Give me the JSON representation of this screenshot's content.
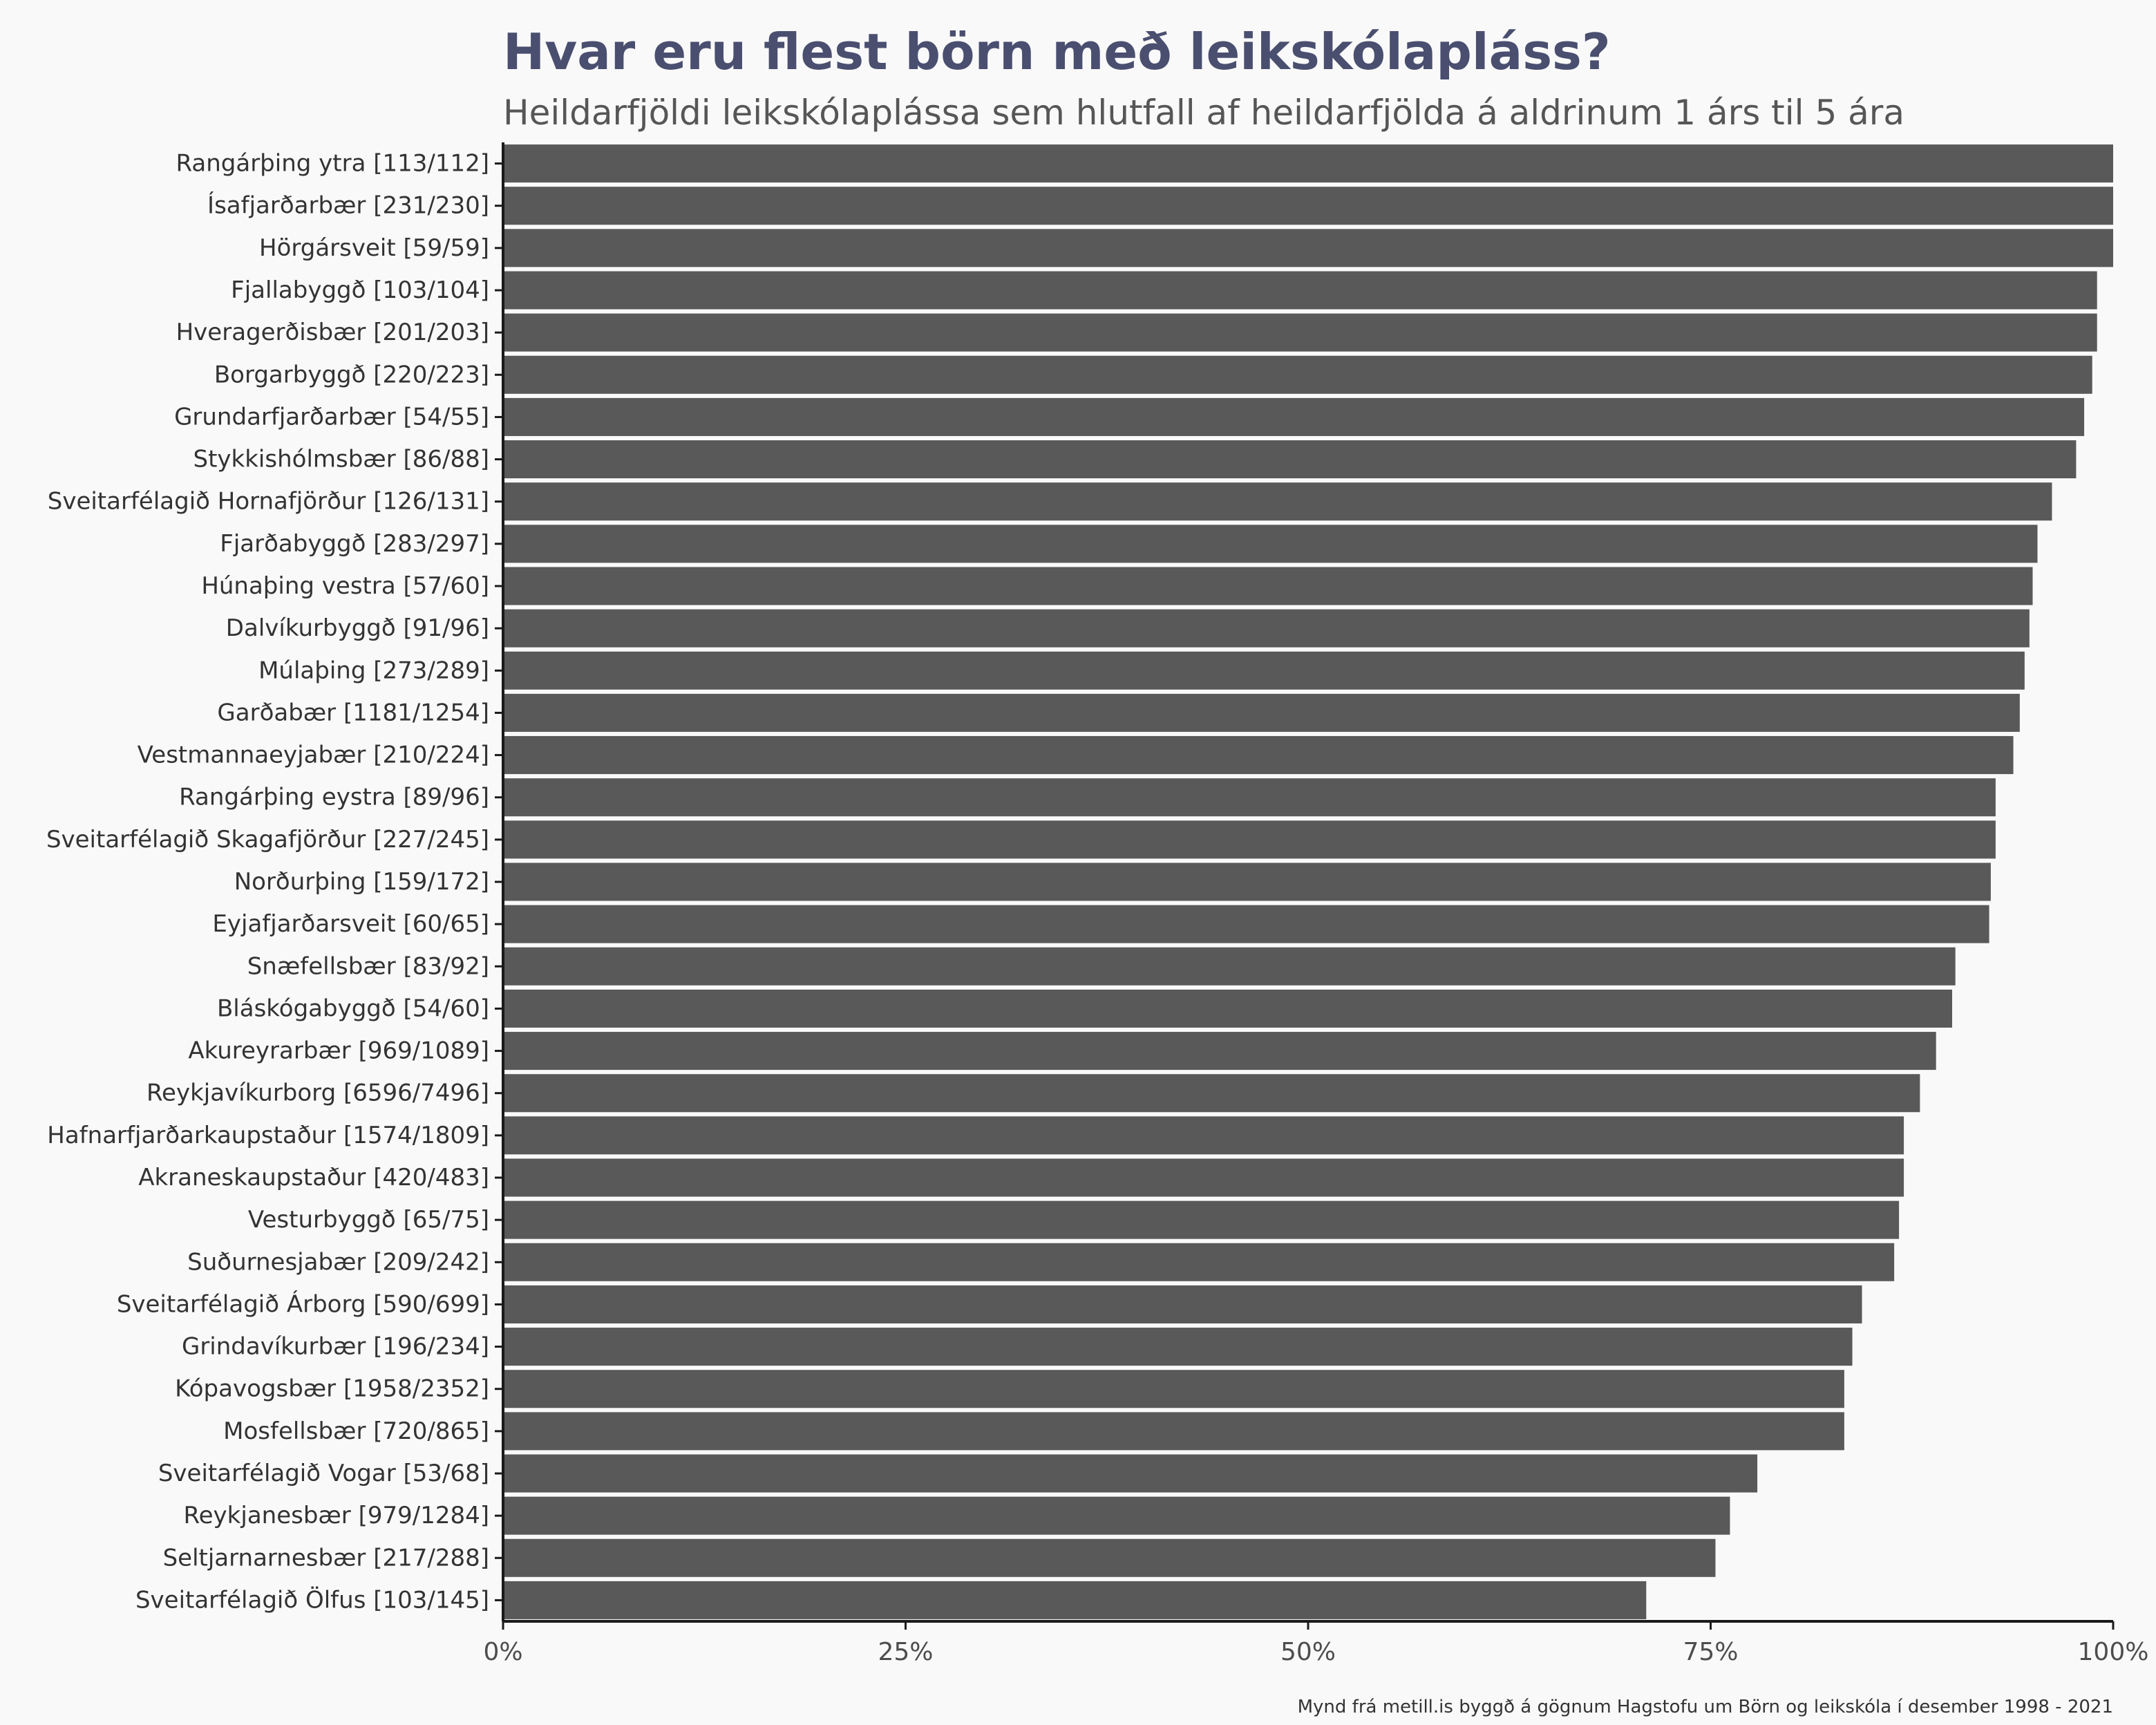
{
  "chart_data": {
    "type": "bar",
    "orientation": "horizontal",
    "title": "Hvar eru flest börn með leikskólapláss?",
    "subtitle": "Heildarfjöldi leikskólaplássa sem hlutfall af heildarfjölda á aldrinum 1 árs til 5 ára",
    "caption": "Mynd frá metill.is byggð á gögnum Hagstofu um Börn og leikskóla í desember 1998 - 2021",
    "xlabel": "",
    "ylabel": "",
    "xlim": [
      0,
      100
    ],
    "x_ticks": [
      0,
      25,
      50,
      75,
      100
    ],
    "x_tick_labels": [
      "0%",
      "25%",
      "50%",
      "75%",
      "100%"
    ],
    "grid": false,
    "bar_color": "#595959",
    "categories": [
      "Rangárþing ytra [113/112]",
      "Ísafjarðarbær [231/230]",
      "Hörgársveit [59/59]",
      "Fjallabyggð [103/104]",
      "Hveragerðisbær [201/203]",
      "Borgarbyggð [220/223]",
      "Grundarfjarðarbær [54/55]",
      "Stykkishólmsbær [86/88]",
      "Sveitarfélagið Hornafjörður [126/131]",
      "Fjarðabyggð [283/297]",
      "Húnaþing vestra [57/60]",
      "Dalvíkurbyggð [91/96]",
      "Múlaþing [273/289]",
      "Garðabær [1181/1254]",
      "Vestmannaeyjabær [210/224]",
      "Rangárþing eystra [89/96]",
      "Sveitarfélagið Skagafjörður [227/245]",
      "Norðurþing [159/172]",
      "Eyjafjarðarsveit [60/65]",
      "Snæfellsbær [83/92]",
      "Bláskógabyggð [54/60]",
      "Akureyrarbær [969/1089]",
      "Reykjavíkurborg [6596/7496]",
      "Hafnarfjarðarkaupstaður [1574/1809]",
      "Akraneskaupstaður [420/483]",
      "Vesturbyggð [65/75]",
      "Suðurnesjabær [209/242]",
      "Sveitarfélagið Árborg [590/699]",
      "Grindavíkurbær [196/234]",
      "Kópavogsbær [1958/2352]",
      "Mosfellsbær [720/865]",
      "Sveitarfélagið Vogar [53/68]",
      "Reykjanesbær [979/1284]",
      "Seltjarnarnesbær [217/288]",
      "Sveitarfélagið Ölfus [103/145]"
    ],
    "values": [
      100,
      100,
      100,
      99.0,
      99.0,
      98.7,
      98.2,
      97.7,
      96.2,
      95.3,
      95.0,
      94.8,
      94.5,
      94.2,
      93.8,
      92.7,
      92.7,
      92.4,
      92.3,
      90.2,
      90.0,
      89.0,
      88.0,
      87.0,
      87.0,
      86.7,
      86.4,
      84.4,
      83.8,
      83.3,
      83.3,
      77.9,
      76.2,
      75.3,
      71.0
    ]
  }
}
